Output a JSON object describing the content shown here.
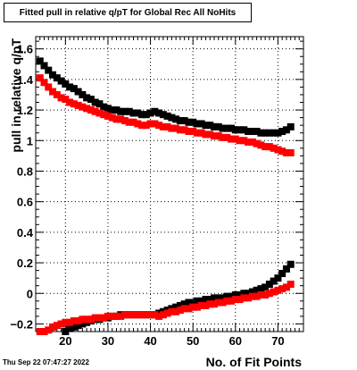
{
  "timestamp": "Thu Sep 22 07:47:27 2022",
  "chart_data": {
    "type": "scatter",
    "title": "Fitted pull in relative q/pT for Global Rec All NoHits",
    "xlabel": "No. of Fit Points",
    "ylabel": "pull in relative q/pT",
    "xlim": [
      13,
      76
    ],
    "ylim": [
      -0.25,
      1.68
    ],
    "xticks": [
      20,
      30,
      40,
      50,
      60,
      70
    ],
    "yticks": [
      -0.2,
      0,
      0.2,
      0.4,
      0.6,
      0.8,
      1,
      1.2,
      1.4,
      1.6
    ],
    "ytick_labels": [
      "−0.2",
      "0",
      "0.2",
      "0.4",
      "0.6",
      "0.8",
      "1",
      "1.2",
      "1.4",
      "1.6"
    ],
    "grid": true,
    "series": [
      {
        "color": "#000000",
        "x": [
          14,
          15,
          16,
          17,
          18,
          19,
          20,
          21,
          22,
          23,
          24,
          25,
          26,
          27,
          28,
          29,
          30,
          31,
          32,
          33,
          34,
          35,
          36,
          37,
          38,
          39,
          40,
          41,
          42,
          43,
          44,
          45,
          46,
          47,
          48,
          49,
          50,
          51,
          52,
          53,
          54,
          55,
          56,
          57,
          58,
          59,
          60,
          61,
          62,
          63,
          64,
          65,
          66,
          67,
          68,
          69,
          70,
          71,
          72,
          73
        ],
        "y": [
          1.52,
          1.49,
          1.46,
          1.43,
          1.41,
          1.39,
          1.37,
          1.35,
          1.34,
          1.32,
          1.3,
          1.28,
          1.27,
          1.25,
          1.24,
          1.22,
          1.21,
          1.2,
          1.2,
          1.19,
          1.19,
          1.19,
          1.18,
          1.18,
          1.17,
          1.17,
          1.18,
          1.19,
          1.18,
          1.17,
          1.16,
          1.15,
          1.14,
          1.13,
          1.13,
          1.12,
          1.12,
          1.11,
          1.11,
          1.1,
          1.1,
          1.09,
          1.09,
          1.08,
          1.08,
          1.08,
          1.07,
          1.07,
          1.07,
          1.06,
          1.06,
          1.06,
          1.05,
          1.05,
          1.05,
          1.05,
          1.05,
          1.06,
          1.07,
          1.09
        ]
      },
      {
        "color": "#ff0000",
        "x": [
          14,
          15,
          16,
          17,
          18,
          19,
          20,
          21,
          22,
          23,
          24,
          25,
          26,
          27,
          28,
          29,
          30,
          31,
          32,
          33,
          34,
          35,
          36,
          37,
          38,
          39,
          40,
          41,
          42,
          43,
          44,
          45,
          46,
          47,
          48,
          49,
          50,
          51,
          52,
          53,
          54,
          55,
          56,
          57,
          58,
          59,
          60,
          61,
          62,
          63,
          64,
          65,
          66,
          67,
          68,
          69,
          70,
          71,
          72,
          73
        ],
        "y": [
          1.41,
          1.38,
          1.35,
          1.32,
          1.3,
          1.28,
          1.27,
          1.25,
          1.24,
          1.23,
          1.22,
          1.21,
          1.2,
          1.19,
          1.18,
          1.17,
          1.16,
          1.15,
          1.14,
          1.14,
          1.13,
          1.12,
          1.12,
          1.11,
          1.1,
          1.1,
          1.11,
          1.11,
          1.1,
          1.09,
          1.09,
          1.08,
          1.08,
          1.07,
          1.07,
          1.06,
          1.06,
          1.05,
          1.05,
          1.04,
          1.04,
          1.03,
          1.03,
          1.02,
          1.02,
          1.01,
          1.01,
          1.0,
          1.0,
          0.99,
          0.99,
          0.98,
          0.97,
          0.96,
          0.96,
          0.95,
          0.94,
          0.93,
          0.92,
          0.92
        ]
      },
      {
        "color": "#000000",
        "x": [
          20,
          21,
          22,
          23,
          24,
          25,
          26,
          27,
          28,
          29,
          30,
          31,
          32,
          33,
          34,
          35,
          36,
          37,
          38,
          39,
          40,
          41,
          42,
          43,
          44,
          45,
          46,
          47,
          48,
          49,
          50,
          51,
          52,
          53,
          54,
          55,
          56,
          57,
          58,
          59,
          60,
          61,
          62,
          63,
          64,
          65,
          66,
          67,
          68,
          69,
          70,
          71,
          72,
          73
        ],
        "y": [
          -0.25,
          -0.23,
          -0.22,
          -0.21,
          -0.2,
          -0.19,
          -0.18,
          -0.17,
          -0.17,
          -0.16,
          -0.16,
          -0.15,
          -0.15,
          -0.14,
          -0.14,
          -0.14,
          -0.14,
          -0.14,
          -0.14,
          -0.14,
          -0.14,
          -0.14,
          -0.13,
          -0.12,
          -0.11,
          -0.1,
          -0.09,
          -0.08,
          -0.07,
          -0.06,
          -0.06,
          -0.05,
          -0.05,
          -0.04,
          -0.04,
          -0.03,
          -0.03,
          -0.03,
          -0.02,
          -0.02,
          -0.01,
          -0.01,
          0.0,
          0.0,
          0.01,
          0.02,
          0.03,
          0.04,
          0.06,
          0.08,
          0.1,
          0.13,
          0.16,
          0.19
        ]
      },
      {
        "color": "#ff0000",
        "x": [
          14,
          15,
          16,
          17,
          18,
          19,
          20,
          21,
          22,
          23,
          24,
          25,
          26,
          27,
          28,
          29,
          30,
          31,
          32,
          33,
          34,
          35,
          36,
          37,
          38,
          39,
          40,
          41,
          42,
          43,
          44,
          45,
          46,
          47,
          48,
          49,
          50,
          51,
          52,
          53,
          54,
          55,
          56,
          57,
          58,
          59,
          60,
          61,
          62,
          63,
          64,
          65,
          66,
          67,
          68,
          69,
          70,
          71,
          72,
          73
        ],
        "y": [
          -0.25,
          -0.25,
          -0.24,
          -0.22,
          -0.21,
          -0.2,
          -0.19,
          -0.19,
          -0.18,
          -0.18,
          -0.17,
          -0.17,
          -0.17,
          -0.16,
          -0.16,
          -0.16,
          -0.15,
          -0.15,
          -0.15,
          -0.15,
          -0.14,
          -0.14,
          -0.14,
          -0.14,
          -0.14,
          -0.14,
          -0.14,
          -0.14,
          -0.15,
          -0.14,
          -0.13,
          -0.12,
          -0.12,
          -0.11,
          -0.1,
          -0.1,
          -0.09,
          -0.09,
          -0.08,
          -0.08,
          -0.07,
          -0.07,
          -0.06,
          -0.06,
          -0.05,
          -0.05,
          -0.04,
          -0.04,
          -0.03,
          -0.03,
          -0.02,
          -0.02,
          -0.01,
          -0.01,
          0.0,
          0.01,
          0.02,
          0.03,
          0.04,
          0.06
        ]
      }
    ]
  }
}
